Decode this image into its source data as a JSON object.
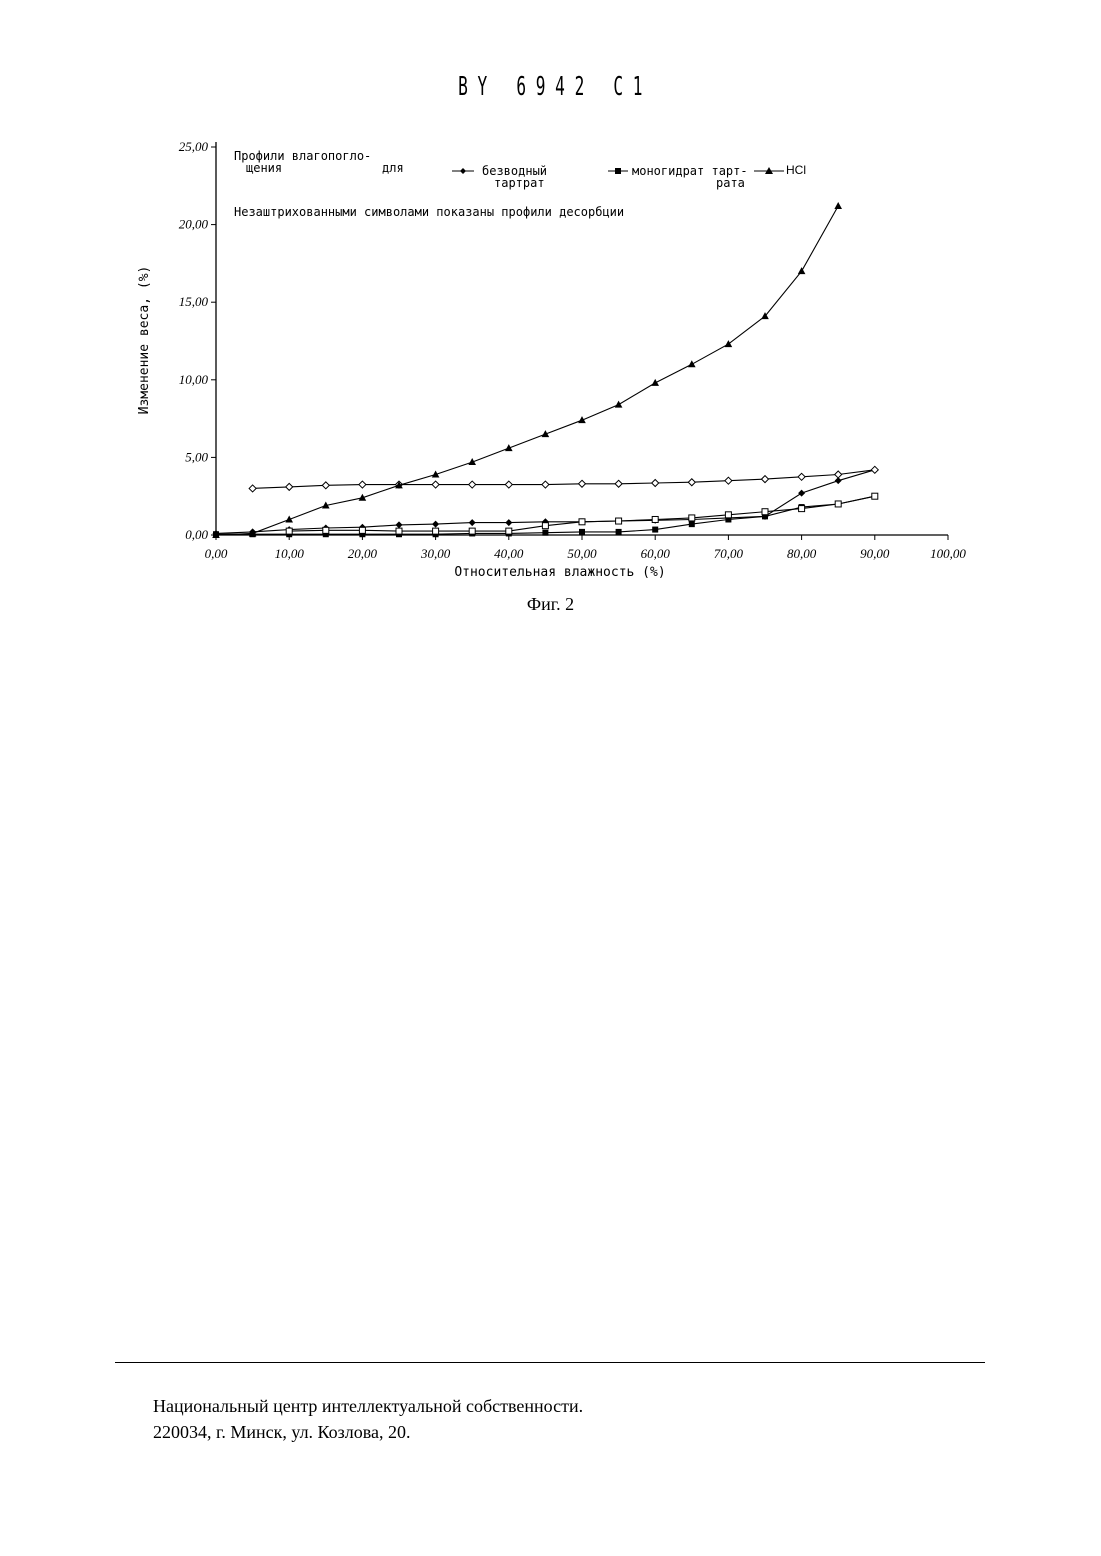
{
  "header": {
    "doc_number": "B Y   6 9 4 2   C 1"
  },
  "figure": {
    "caption": "Фиг. 2"
  },
  "footer": {
    "line1": "Национальный центр интеллектуальной собственности.",
    "line2": "220034, г. Минск, ул. Козлова, 20."
  },
  "chart_data": {
    "type": "line",
    "xlabel": "Относительная влажность (%)",
    "ylabel": "Изменение веса, (%)",
    "xlim": [
      0,
      100
    ],
    "ylim": [
      0,
      25
    ],
    "x_ticks": [
      "0,00",
      "10,00",
      "20,00",
      "30,00",
      "40,00",
      "50,00",
      "60,00",
      "70,00",
      "80,00",
      "90,00",
      "100,00"
    ],
    "y_ticks": [
      "0,00",
      "5,00",
      "10,00",
      "15,00",
      "20,00",
      "25,00"
    ],
    "legend": {
      "title_line1": "Профили влагопогло-",
      "title_line2": "щения",
      "for_word": "для",
      "labels": [
        {
          "line1": "безводный",
          "line2": "тартрат"
        },
        {
          "line1": "моногидрат тарт-",
          "line2": "рата"
        },
        {
          "line1": "HCl",
          "line2": ""
        }
      ]
    },
    "annotation": "Незаштрихованными символами показаны профили десорбции",
    "series": [
      {
        "marker": "diamond-filled",
        "type": "sorption",
        "points": [
          [
            0,
            0.1
          ],
          [
            5,
            0.2
          ],
          [
            10,
            0.35
          ],
          [
            15,
            0.45
          ],
          [
            20,
            0.5
          ],
          [
            25,
            0.65
          ],
          [
            30,
            0.7
          ],
          [
            35,
            0.8
          ],
          [
            40,
            0.8
          ],
          [
            45,
            0.85
          ],
          [
            50,
            0.85
          ],
          [
            55,
            0.9
          ],
          [
            60,
            0.95
          ],
          [
            65,
            1.0
          ],
          [
            70,
            1.1
          ],
          [
            75,
            1.2
          ],
          [
            80,
            2.7
          ],
          [
            85,
            3.5
          ],
          [
            90,
            4.2
          ]
        ]
      },
      {
        "marker": "diamond-open",
        "type": "desorption",
        "points": [
          [
            5,
            3.0
          ],
          [
            10,
            3.1
          ],
          [
            15,
            3.2
          ],
          [
            20,
            3.25
          ],
          [
            25,
            3.25
          ],
          [
            30,
            3.25
          ],
          [
            35,
            3.25
          ],
          [
            40,
            3.25
          ],
          [
            45,
            3.25
          ],
          [
            50,
            3.3
          ],
          [
            55,
            3.3
          ],
          [
            60,
            3.35
          ],
          [
            65,
            3.4
          ],
          [
            70,
            3.5
          ],
          [
            75,
            3.6
          ],
          [
            80,
            3.75
          ],
          [
            85,
            3.9
          ],
          [
            90,
            4.2
          ]
        ]
      },
      {
        "marker": "square-filled",
        "type": "sorption",
        "points": [
          [
            0,
            0.05
          ],
          [
            5,
            0.05
          ],
          [
            10,
            0.05
          ],
          [
            15,
            0.05
          ],
          [
            20,
            0.05
          ],
          [
            25,
            0.05
          ],
          [
            30,
            0.05
          ],
          [
            35,
            0.1
          ],
          [
            40,
            0.1
          ],
          [
            45,
            0.15
          ],
          [
            50,
            0.2
          ],
          [
            55,
            0.2
          ],
          [
            60,
            0.35
          ],
          [
            65,
            0.7
          ],
          [
            70,
            1.0
          ],
          [
            75,
            1.2
          ],
          [
            80,
            1.8
          ],
          [
            85,
            2.0
          ],
          [
            90,
            2.5
          ]
        ]
      },
      {
        "marker": "square-open",
        "type": "desorption",
        "points": [
          [
            10,
            0.25
          ],
          [
            15,
            0.3
          ],
          [
            20,
            0.3
          ],
          [
            25,
            0.25
          ],
          [
            30,
            0.25
          ],
          [
            35,
            0.25
          ],
          [
            40,
            0.25
          ],
          [
            45,
            0.6
          ],
          [
            50,
            0.85
          ],
          [
            55,
            0.9
          ],
          [
            60,
            1.0
          ],
          [
            65,
            1.1
          ],
          [
            70,
            1.3
          ],
          [
            75,
            1.5
          ],
          [
            80,
            1.7
          ],
          [
            85,
            2.0
          ],
          [
            90,
            2.5
          ]
        ]
      },
      {
        "marker": "triangle-filled",
        "type": "sorption",
        "points": [
          [
            0,
            0.0
          ],
          [
            5,
            0.1
          ],
          [
            10,
            1.0
          ],
          [
            15,
            1.9
          ],
          [
            20,
            2.4
          ],
          [
            25,
            3.2
          ],
          [
            30,
            3.9
          ],
          [
            35,
            4.7
          ],
          [
            40,
            5.6
          ],
          [
            45,
            6.5
          ],
          [
            50,
            7.4
          ],
          [
            55,
            8.4
          ],
          [
            60,
            9.8
          ],
          [
            65,
            11.0
          ],
          [
            70,
            12.3
          ],
          [
            75,
            14.1
          ],
          [
            80,
            17.0
          ],
          [
            85,
            21.2
          ]
        ]
      }
    ]
  }
}
